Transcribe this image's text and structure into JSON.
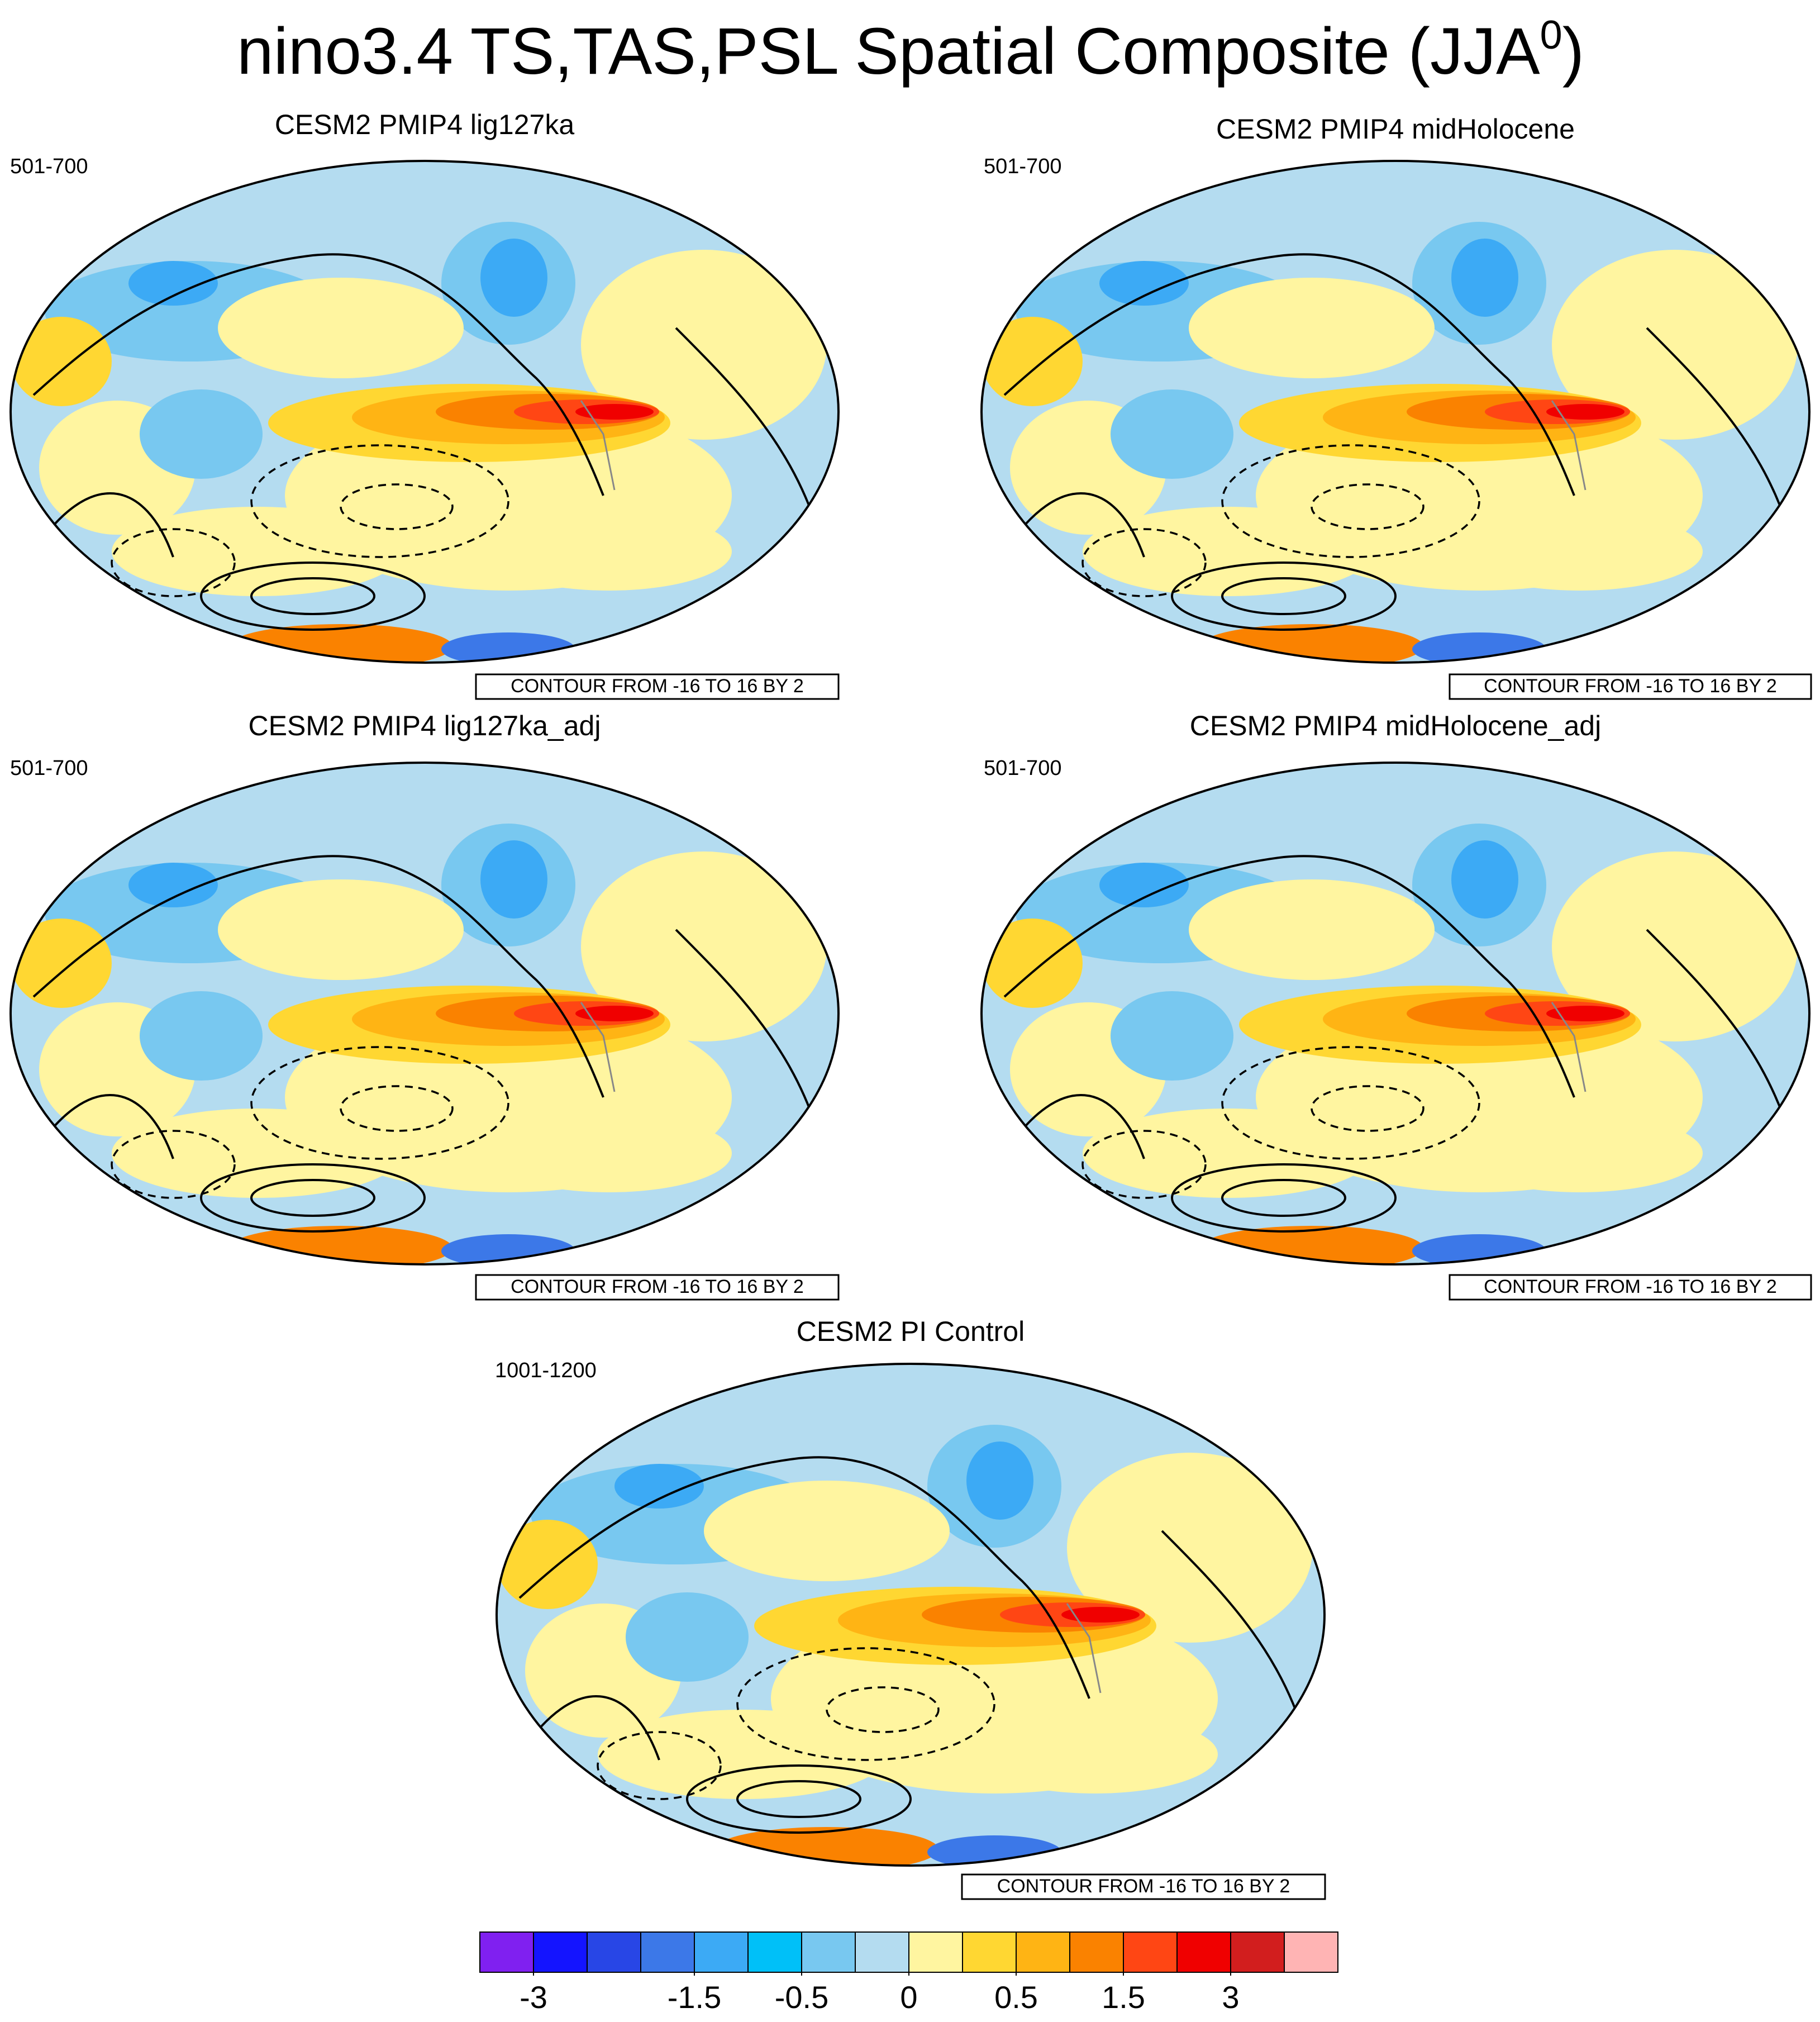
{
  "title": {
    "main": "nino3.4 TS,TAS,PSL Spatial Composite (JJA",
    "sup": "0",
    "end": ")"
  },
  "panels": [
    {
      "title": "CESM2 PMIP4 lig127ka",
      "period": "501-700",
      "contour_note": "CONTOUR FROM -16 TO 16 BY 2"
    },
    {
      "title": "CESM2 PMIP4 midHolocene",
      "period": "501-700",
      "contour_note": "CONTOUR FROM -16 TO 16 BY 2"
    },
    {
      "title": "CESM2 PMIP4 lig127ka_adj",
      "period": "501-700",
      "contour_note": "CONTOUR FROM -16 TO 16 BY 2"
    },
    {
      "title": "CESM2 PMIP4 midHolocene_adj",
      "period": "501-700",
      "contour_note": "CONTOUR FROM -16 TO 16 BY 2"
    },
    {
      "title": "CESM2 PI Control",
      "period": "1001-1200",
      "contour_note": "CONTOUR FROM -16 TO 16 BY 2"
    }
  ],
  "colorbar": {
    "colors": [
      "#8020f0",
      "#1414ff",
      "#2846e6",
      "#3c78e8",
      "#3caaf5",
      "#00c0f8",
      "#78c8f0",
      "#b4dcf0",
      "#fff5a0",
      "#ffd732",
      "#ffb414",
      "#fa8200",
      "#ff4614",
      "#f00000",
      "#d21e1e",
      "#ffb4b4"
    ],
    "levels": [
      -3,
      null,
      null,
      -1.5,
      null,
      -0.5,
      null,
      0,
      null,
      0.5,
      null,
      1.5,
      null,
      3,
      null
    ]
  }
}
